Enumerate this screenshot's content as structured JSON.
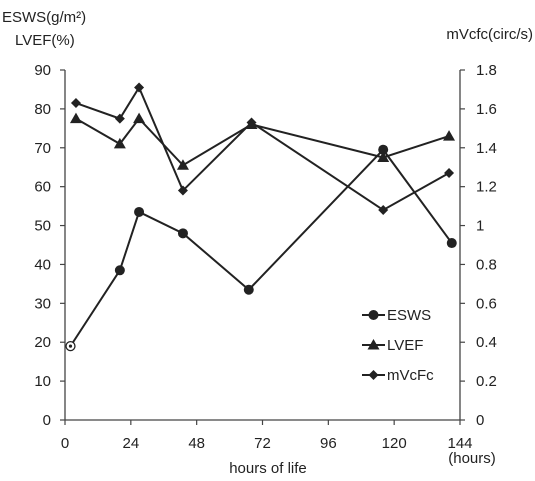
{
  "chart_data": {
    "type": "line",
    "y_left_label_line1": "ESWS(g/m²)",
    "y_left_label_line2": "LVEF(%)",
    "y_right_label": "mVcfc(circ/s)",
    "xlabel": "hours of life",
    "x_unit_label": "(hours)",
    "x_ticks": [
      "0",
      "24",
      "48",
      "72",
      "96",
      "120",
      "144"
    ],
    "y_left_ticks": [
      "0",
      "10",
      "20",
      "30",
      "40",
      "50",
      "60",
      "70",
      "80",
      "90"
    ],
    "y_right_ticks": [
      "0",
      "0.2",
      "0.4",
      "0.6",
      "0.8",
      "1",
      "1.2",
      "1.4",
      "1.6",
      "1.8"
    ],
    "xlim": [
      0,
      144
    ],
    "y_left_lim": [
      0,
      90
    ],
    "y_right_lim": [
      0,
      1.8
    ],
    "legend_position": "bottom-right",
    "series": [
      {
        "name": "ESWS",
        "axis": "left",
        "marker": "circle",
        "x": [
          2,
          20,
          27,
          43,
          67,
          116,
          141
        ],
        "values": [
          19,
          38.5,
          53.5,
          48,
          33.5,
          69.5,
          45.5
        ]
      },
      {
        "name": "LVEF",
        "axis": "left",
        "marker": "triangle",
        "x": [
          4,
          20,
          27,
          43,
          68,
          116,
          140
        ],
        "values": [
          77.5,
          71,
          77.5,
          65.5,
          76,
          67.5,
          73
        ]
      },
      {
        "name": "mVcFc",
        "axis": "right",
        "marker": "diamond",
        "x": [
          4,
          20,
          27,
          43,
          68,
          116,
          140
        ],
        "values": [
          1.63,
          1.55,
          1.71,
          1.18,
          1.53,
          1.08,
          1.27
        ]
      }
    ]
  }
}
